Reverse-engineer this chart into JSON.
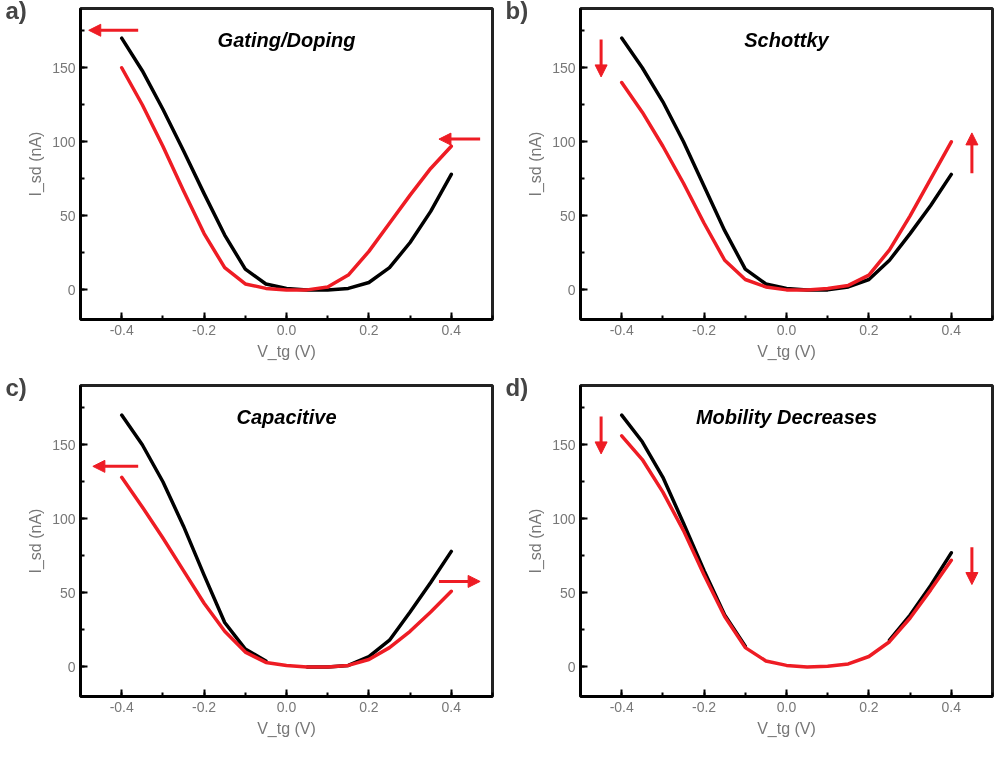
{
  "chart_data": [
    {
      "type": "line",
      "title": "Gating/Doping",
      "annotations": [
        "a)"
      ],
      "xlabel": "V_tg (V)",
      "ylabel": "I_sd (nA)",
      "x": [
        -0.4,
        -0.35,
        -0.3,
        -0.25,
        -0.2,
        -0.15,
        -0.1,
        -0.05,
        0,
        0.05,
        0.1,
        0.15,
        0.2,
        0.25,
        0.3,
        0.35,
        0.4
      ],
      "xlim": [
        -0.5,
        0.5
      ],
      "ylim": [
        -20,
        190
      ],
      "xticks": [
        {
          "value": -0.4,
          "label": "-0.4"
        },
        {
          "value": -0.2,
          "label": "-0.2"
        },
        {
          "value": 0,
          "label": "0.0"
        },
        {
          "value": 0.2,
          "label": "0.2"
        },
        {
          "value": 0.4,
          "label": "0.4"
        }
      ],
      "yticks": [
        0,
        50,
        100,
        150
      ],
      "series": [
        {
          "color": "#000000",
          "values": [
            170,
            148,
            122,
            94,
            65,
            37,
            14,
            4,
            1,
            0,
            0,
            1,
            5,
            15,
            32,
            53,
            78
          ]
        },
        {
          "color": "#ee1c24",
          "values": [
            150,
            125,
            97,
            67,
            38,
            15,
            4,
            1,
            0,
            0,
            2,
            10,
            26,
            45,
            64,
            82,
            97
          ]
        }
      ]
    },
    {
      "type": "line",
      "title": "Schottky",
      "annotations": [
        "b)"
      ],
      "xlabel": "V_tg (V)",
      "ylabel": "I_sd (nA)",
      "x": [
        -0.4,
        -0.35,
        -0.3,
        -0.25,
        -0.2,
        -0.15,
        -0.1,
        -0.05,
        0,
        0.05,
        0.1,
        0.15,
        0.2,
        0.25,
        0.3,
        0.35,
        0.4
      ],
      "xlim": [
        -0.5,
        0.5
      ],
      "ylim": [
        -20,
        190
      ],
      "xticks": [
        {
          "value": -0.4,
          "label": "-0.4"
        },
        {
          "value": -0.2,
          "label": "-0.2"
        },
        {
          "value": 0,
          "label": "0.0"
        },
        {
          "value": 0.2,
          "label": "0.2"
        },
        {
          "value": 0.4,
          "label": "0.4"
        }
      ],
      "yticks": [
        0,
        50,
        100,
        150
      ],
      "series": [
        {
          "color": "#000000",
          "values": [
            170,
            150,
            127,
            100,
            70,
            40,
            14,
            4,
            1,
            0,
            0,
            2,
            7,
            20,
            38,
            57,
            78
          ]
        },
        {
          "color": "#ee1c24",
          "values": [
            140,
            120,
            97,
            72,
            45,
            20,
            7,
            2,
            0,
            0,
            1,
            3,
            10,
            27,
            50,
            75,
            100
          ]
        }
      ]
    },
    {
      "type": "line",
      "title": "Capacitive",
      "annotations": [
        "c)"
      ],
      "xlabel": "V_tg (V)",
      "ylabel": "I_sd (nA)",
      "x": [
        -0.4,
        -0.35,
        -0.3,
        -0.25,
        -0.2,
        -0.15,
        -0.1,
        -0.05,
        0,
        0.05,
        0.1,
        0.15,
        0.2,
        0.25,
        0.3,
        0.35,
        0.4
      ],
      "xlim": [
        -0.5,
        0.5
      ],
      "ylim": [
        -20,
        190
      ],
      "xticks": [
        {
          "value": -0.4,
          "label": "-0.4"
        },
        {
          "value": -0.2,
          "label": "-0.2"
        },
        {
          "value": 0,
          "label": "0.0"
        },
        {
          "value": 0.2,
          "label": "0.2"
        },
        {
          "value": 0.4,
          "label": "0.4"
        }
      ],
      "yticks": [
        0,
        50,
        100,
        150
      ],
      "series": [
        {
          "color": "#000000",
          "values": [
            170,
            150,
            125,
            95,
            62,
            30,
            12,
            4,
            null,
            0,
            0,
            1,
            7,
            18,
            37,
            57,
            78
          ]
        },
        {
          "color": "#ee1c24",
          "values": [
            128,
            108,
            87,
            65,
            43,
            24,
            10,
            3,
            1,
            0,
            0,
            1,
            5,
            13,
            24,
            37,
            51
          ]
        }
      ]
    },
    {
      "type": "line",
      "title": "Mobility Decreases",
      "annotations": [
        "d)"
      ],
      "xlabel": "V_tg (V)",
      "ylabel": "I_sd (nA)",
      "x": [
        -0.4,
        -0.35,
        -0.3,
        -0.25,
        -0.2,
        -0.15,
        -0.1,
        -0.05,
        0,
        0.05,
        0.1,
        0.15,
        0.2,
        0.25,
        0.3,
        0.35,
        0.4
      ],
      "xlim": [
        -0.5,
        0.5
      ],
      "ylim": [
        -20,
        190
      ],
      "xticks": [
        {
          "value": -0.4,
          "label": "-0.4"
        },
        {
          "value": -0.2,
          "label": "-0.2"
        },
        {
          "value": 0,
          "label": "0.0"
        },
        {
          "value": 0.2,
          "label": "0.2"
        },
        {
          "value": 0.4,
          "label": "0.4"
        }
      ],
      "yticks": [
        0,
        50,
        100,
        150
      ],
      "series": [
        {
          "color": "#000000",
          "values": [
            170,
            152,
            128,
            97,
            65,
            35,
            14,
            null,
            null,
            null,
            null,
            null,
            null,
            18,
            35,
            55,
            77
          ]
        },
        {
          "color": "#ee1c24",
          "values": [
            156,
            140,
            118,
            92,
            62,
            34,
            13,
            4,
            1,
            0,
            0.5,
            2,
            7,
            17,
            33,
            52,
            72
          ]
        }
      ]
    }
  ]
}
